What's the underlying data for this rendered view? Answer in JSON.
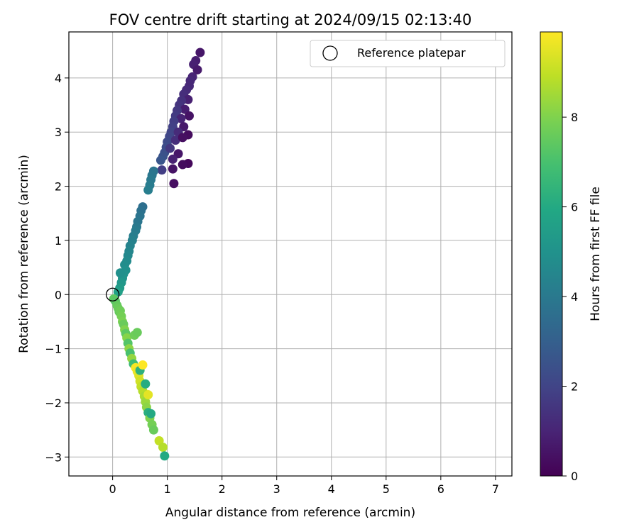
{
  "chart_data": {
    "type": "scatter",
    "title": "FOV centre drift starting at 2024/09/15 02:13:40",
    "xlabel": "Angular distance from reference (arcmin)",
    "ylabel": "Rotation from reference (arcmin)",
    "xlim": [
      -0.8,
      7.3
    ],
    "ylim": [
      -3.35,
      4.85
    ],
    "xticks": [
      0,
      1,
      2,
      3,
      4,
      5,
      6,
      7
    ],
    "yticks": [
      -3,
      -2,
      -1,
      0,
      1,
      2,
      3,
      4
    ],
    "grid": true,
    "legend": {
      "placement": "top-right",
      "entries": [
        "Reference platepar"
      ]
    },
    "reference_point": {
      "x": 0,
      "y": 0
    },
    "colorbar": {
      "label": "Hours from first FF file",
      "colormap": "viridis",
      "range": [
        0,
        9.9
      ],
      "ticks": [
        0,
        2,
        4,
        6,
        8
      ]
    },
    "points": [
      {
        "x": 1.6,
        "y": 4.47,
        "h": 0.6
      },
      {
        "x": 1.52,
        "y": 4.32,
        "h": 0.8
      },
      {
        "x": 1.48,
        "y": 4.25,
        "h": 0.9
      },
      {
        "x": 1.55,
        "y": 4.15,
        "h": 0.7
      },
      {
        "x": 1.46,
        "y": 4.02,
        "h": 1.0
      },
      {
        "x": 1.42,
        "y": 3.95,
        "h": 1.1
      },
      {
        "x": 1.4,
        "y": 3.85,
        "h": 1.1
      },
      {
        "x": 1.35,
        "y": 3.78,
        "h": 1.2
      },
      {
        "x": 1.3,
        "y": 3.7,
        "h": 1.3
      },
      {
        "x": 1.38,
        "y": 3.6,
        "h": 0.9
      },
      {
        "x": 1.26,
        "y": 3.58,
        "h": 1.4
      },
      {
        "x": 1.22,
        "y": 3.5,
        "h": 1.5
      },
      {
        "x": 1.32,
        "y": 3.42,
        "h": 0.8
      },
      {
        "x": 1.18,
        "y": 3.4,
        "h": 1.6
      },
      {
        "x": 1.15,
        "y": 3.3,
        "h": 1.7
      },
      {
        "x": 1.4,
        "y": 3.3,
        "h": 0.5
      },
      {
        "x": 1.25,
        "y": 3.25,
        "h": 1.0
      },
      {
        "x": 1.12,
        "y": 3.2,
        "h": 1.8
      },
      {
        "x": 1.1,
        "y": 3.1,
        "h": 1.9
      },
      {
        "x": 1.3,
        "y": 3.1,
        "h": 0.7
      },
      {
        "x": 1.07,
        "y": 3.0,
        "h": 2.0
      },
      {
        "x": 1.2,
        "y": 3.0,
        "h": 1.2
      },
      {
        "x": 1.04,
        "y": 2.92,
        "h": 2.1
      },
      {
        "x": 1.38,
        "y": 2.95,
        "h": 0.3
      },
      {
        "x": 1.0,
        "y": 2.82,
        "h": 2.2
      },
      {
        "x": 1.15,
        "y": 2.85,
        "h": 1.3
      },
      {
        "x": 0.98,
        "y": 2.72,
        "h": 2.3
      },
      {
        "x": 1.28,
        "y": 2.9,
        "h": 0.4
      },
      {
        "x": 0.95,
        "y": 2.62,
        "h": 2.4
      },
      {
        "x": 1.05,
        "y": 2.7,
        "h": 1.6
      },
      {
        "x": 1.2,
        "y": 2.6,
        "h": 0.6
      },
      {
        "x": 0.92,
        "y": 2.55,
        "h": 2.5
      },
      {
        "x": 0.88,
        "y": 2.48,
        "h": 2.6
      },
      {
        "x": 1.1,
        "y": 2.5,
        "h": 0.9
      },
      {
        "x": 1.38,
        "y": 2.42,
        "h": 0.2
      },
      {
        "x": 1.28,
        "y": 2.4,
        "h": 0.3
      },
      {
        "x": 1.1,
        "y": 2.32,
        "h": 0.5
      },
      {
        "x": 0.9,
        "y": 2.3,
        "h": 1.8
      },
      {
        "x": 0.75,
        "y": 2.28,
        "h": 3.8
      },
      {
        "x": 0.72,
        "y": 2.2,
        "h": 3.9
      },
      {
        "x": 0.7,
        "y": 2.12,
        "h": 4.0
      },
      {
        "x": 0.68,
        "y": 2.02,
        "h": 4.1
      },
      {
        "x": 0.65,
        "y": 1.93,
        "h": 4.2
      },
      {
        "x": 1.12,
        "y": 2.05,
        "h": 0.4
      },
      {
        "x": 0.55,
        "y": 1.62,
        "h": 3.6
      },
      {
        "x": 0.52,
        "y": 1.55,
        "h": 3.7
      },
      {
        "x": 0.5,
        "y": 1.45,
        "h": 3.8
      },
      {
        "x": 0.46,
        "y": 1.35,
        "h": 3.9
      },
      {
        "x": 0.44,
        "y": 1.25,
        "h": 4.0
      },
      {
        "x": 0.42,
        "y": 1.18,
        "h": 4.1
      },
      {
        "x": 0.38,
        "y": 1.08,
        "h": 4.2
      },
      {
        "x": 0.36,
        "y": 1.0,
        "h": 4.3
      },
      {
        "x": 0.32,
        "y": 0.9,
        "h": 4.4
      },
      {
        "x": 0.3,
        "y": 0.8,
        "h": 4.5
      },
      {
        "x": 0.28,
        "y": 0.72,
        "h": 4.6
      },
      {
        "x": 0.26,
        "y": 0.62,
        "h": 4.7
      },
      {
        "x": 0.22,
        "y": 0.55,
        "h": 4.8
      },
      {
        "x": 0.24,
        "y": 0.45,
        "h": 4.9
      },
      {
        "x": 0.2,
        "y": 0.38,
        "h": 5.0
      },
      {
        "x": 0.18,
        "y": 0.3,
        "h": 5.1
      },
      {
        "x": 0.14,
        "y": 0.4,
        "h": 4.9
      },
      {
        "x": 0.16,
        "y": 0.22,
        "h": 5.2
      },
      {
        "x": 0.13,
        "y": 0.12,
        "h": 5.4
      },
      {
        "x": 0.1,
        "y": 0.05,
        "h": 5.6
      },
      {
        "x": 0.02,
        "y": -0.08,
        "h": 7.4
      },
      {
        "x": 0.05,
        "y": -0.12,
        "h": 7.3
      },
      {
        "x": 0.08,
        "y": -0.2,
        "h": 7.5
      },
      {
        "x": 0.1,
        "y": -0.25,
        "h": 7.6
      },
      {
        "x": 0.12,
        "y": -0.32,
        "h": 7.5
      },
      {
        "x": 0.14,
        "y": -0.3,
        "h": 7.7
      },
      {
        "x": 0.16,
        "y": -0.4,
        "h": 7.8
      },
      {
        "x": 0.18,
        "y": -0.5,
        "h": 7.9
      },
      {
        "x": 0.2,
        "y": -0.55,
        "h": 7.6
      },
      {
        "x": 0.22,
        "y": -0.65,
        "h": 8.0
      },
      {
        "x": 0.24,
        "y": -0.72,
        "h": 7.4
      },
      {
        "x": 0.26,
        "y": -0.8,
        "h": 8.1
      },
      {
        "x": 0.28,
        "y": -0.9,
        "h": 7.2
      },
      {
        "x": 0.3,
        "y": -1.0,
        "h": 8.2
      },
      {
        "x": 0.32,
        "y": -1.08,
        "h": 7.0
      },
      {
        "x": 0.35,
        "y": -1.18,
        "h": 8.3
      },
      {
        "x": 0.38,
        "y": -1.28,
        "h": 6.8
      },
      {
        "x": 0.4,
        "y": -0.75,
        "h": 7.7
      },
      {
        "x": 0.45,
        "y": -0.7,
        "h": 7.6
      },
      {
        "x": 0.42,
        "y": -1.35,
        "h": 9.8
      },
      {
        "x": 0.45,
        "y": -1.42,
        "h": 9.6
      },
      {
        "x": 0.48,
        "y": -1.5,
        "h": 9.4
      },
      {
        "x": 0.5,
        "y": -1.6,
        "h": 9.2
      },
      {
        "x": 0.52,
        "y": -1.7,
        "h": 9.0
      },
      {
        "x": 0.55,
        "y": -1.78,
        "h": 8.8
      },
      {
        "x": 0.58,
        "y": -1.88,
        "h": 8.6
      },
      {
        "x": 0.6,
        "y": -1.98,
        "h": 8.4
      },
      {
        "x": 0.62,
        "y": -2.08,
        "h": 8.2
      },
      {
        "x": 0.65,
        "y": -2.18,
        "h": 6.2
      },
      {
        "x": 0.68,
        "y": -2.28,
        "h": 8.0
      },
      {
        "x": 0.72,
        "y": -2.4,
        "h": 7.8
      },
      {
        "x": 0.75,
        "y": -2.5,
        "h": 7.6
      },
      {
        "x": 0.85,
        "y": -2.7,
        "h": 9.0
      },
      {
        "x": 0.92,
        "y": -2.82,
        "h": 8.8
      },
      {
        "x": 0.95,
        "y": -2.98,
        "h": 6.0
      },
      {
        "x": 0.5,
        "y": -1.4,
        "h": 6.3
      },
      {
        "x": 0.6,
        "y": -1.65,
        "h": 6.1
      },
      {
        "x": 0.7,
        "y": -2.2,
        "h": 6.0
      },
      {
        "x": 0.55,
        "y": -1.3,
        "h": 9.9
      },
      {
        "x": 0.65,
        "y": -1.85,
        "h": 9.5
      }
    ]
  }
}
